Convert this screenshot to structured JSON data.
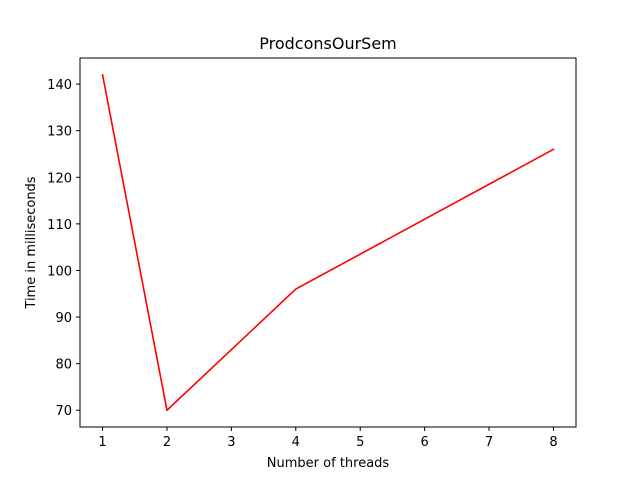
{
  "chart_data": {
    "type": "line",
    "title": "ProdconsOurSem",
    "xlabel": "Number of threads",
    "ylabel": "Time in milliseconds",
    "x_ticks": [
      "1",
      "2",
      "3",
      "4",
      "5",
      "6",
      "7",
      "8"
    ],
    "y_ticks": [
      "70",
      "80",
      "90",
      "100",
      "110",
      "120",
      "130",
      "140"
    ],
    "xlim": [
      0.65,
      8.35
    ],
    "ylim": [
      66.4,
      145.6
    ],
    "grid": false,
    "series": [
      {
        "color": "#ff0000",
        "x": [
          1,
          2,
          4,
          8
        ],
        "y": [
          142,
          70,
          96,
          126
        ]
      }
    ]
  }
}
